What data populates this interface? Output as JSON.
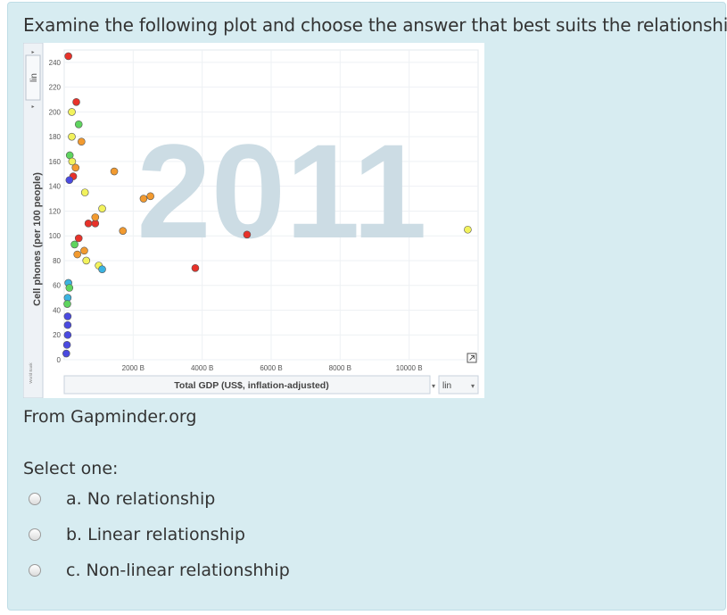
{
  "question": "Examine the following plot and choose the answer that best suits the relationship.",
  "source": "From Gapminder.org",
  "select_label": "Select one:",
  "options": [
    {
      "label": "a. No relationship"
    },
    {
      "label": "b. Linear relationship"
    },
    {
      "label": "c. Non-linear relationshhip"
    }
  ],
  "plot": {
    "year_watermark": "2011",
    "y_scale_label": "lin",
    "x_scale_label": "lin",
    "ylabel": "Cell phones (per 100 people)",
    "xlabel": "Total GDP (US$, inflation-adjusted)",
    "y_ticks": [
      "0",
      "20",
      "40",
      "60",
      "80",
      "100",
      "120",
      "140",
      "160",
      "180",
      "200",
      "220",
      "240"
    ],
    "x_ticks": [
      "2000 B",
      "4000 B",
      "6000 B",
      "8000 B",
      "10000 B"
    ],
    "side_note": "World Bank"
  },
  "chart_data": {
    "type": "scatter",
    "title": "",
    "xlabel": "Total GDP (US$, inflation-adjusted)",
    "ylabel": "Cell phones (per 100 people)",
    "xlim": [
      0,
      12000
    ],
    "ylim": [
      0,
      250
    ],
    "x_unit": "billion US$",
    "scale": "linear",
    "points": [
      {
        "x": 120,
        "y": 245,
        "color": "#e8322a"
      },
      {
        "x": 350,
        "y": 208,
        "color": "#e8322a"
      },
      {
        "x": 220,
        "y": 200,
        "color": "#f2f25c"
      },
      {
        "x": 420,
        "y": 190,
        "color": "#5fd45f"
      },
      {
        "x": 220,
        "y": 180,
        "color": "#f2f25c"
      },
      {
        "x": 500,
        "y": 176,
        "color": "#f29a2f"
      },
      {
        "x": 160,
        "y": 165,
        "color": "#5fd45f"
      },
      {
        "x": 230,
        "y": 160,
        "color": "#f2f25c"
      },
      {
        "x": 330,
        "y": 155,
        "color": "#f29a2f"
      },
      {
        "x": 1450,
        "y": 152,
        "color": "#f29a2f"
      },
      {
        "x": 260,
        "y": 148,
        "color": "#e8322a"
      },
      {
        "x": 150,
        "y": 145,
        "color": "#4a4ae0"
      },
      {
        "x": 2500,
        "y": 132,
        "color": "#f29a2f"
      },
      {
        "x": 2300,
        "y": 130,
        "color": "#f29a2f"
      },
      {
        "x": 600,
        "y": 135,
        "color": "#f2f25c"
      },
      {
        "x": 1100,
        "y": 122,
        "color": "#f2f25c"
      },
      {
        "x": 700,
        "y": 110,
        "color": "#e8322a"
      },
      {
        "x": 900,
        "y": 110,
        "color": "#e8322a"
      },
      {
        "x": 900,
        "y": 115,
        "color": "#f29a2f"
      },
      {
        "x": 1700,
        "y": 104,
        "color": "#f29a2f"
      },
      {
        "x": 5300,
        "y": 101,
        "color": "#e8322a"
      },
      {
        "x": 420,
        "y": 98,
        "color": "#e8322a"
      },
      {
        "x": 300,
        "y": 93,
        "color": "#5fd45f"
      },
      {
        "x": 580,
        "y": 88,
        "color": "#f29a2f"
      },
      {
        "x": 380,
        "y": 85,
        "color": "#f29a2f"
      },
      {
        "x": 640,
        "y": 80,
        "color": "#f2f25c"
      },
      {
        "x": 1000,
        "y": 76,
        "color": "#f2f25c"
      },
      {
        "x": 1100,
        "y": 73,
        "color": "#3bb3e0"
      },
      {
        "x": 3800,
        "y": 74,
        "color": "#e8322a"
      },
      {
        "x": 11700,
        "y": 105,
        "color": "#f2f25c"
      },
      {
        "x": 120,
        "y": 62,
        "color": "#3bb3e0"
      },
      {
        "x": 150,
        "y": 58,
        "color": "#5fd45f"
      },
      {
        "x": 100,
        "y": 50,
        "color": "#3bb3e0"
      },
      {
        "x": 90,
        "y": 45,
        "color": "#5fd45f"
      },
      {
        "x": 100,
        "y": 35,
        "color": "#4a4ae0"
      },
      {
        "x": 100,
        "y": 28,
        "color": "#4a4ae0"
      },
      {
        "x": 100,
        "y": 20,
        "color": "#4a4ae0"
      },
      {
        "x": 80,
        "y": 12,
        "color": "#4a4ae0"
      },
      {
        "x": 60,
        "y": 5,
        "color": "#4a4ae0"
      }
    ]
  }
}
